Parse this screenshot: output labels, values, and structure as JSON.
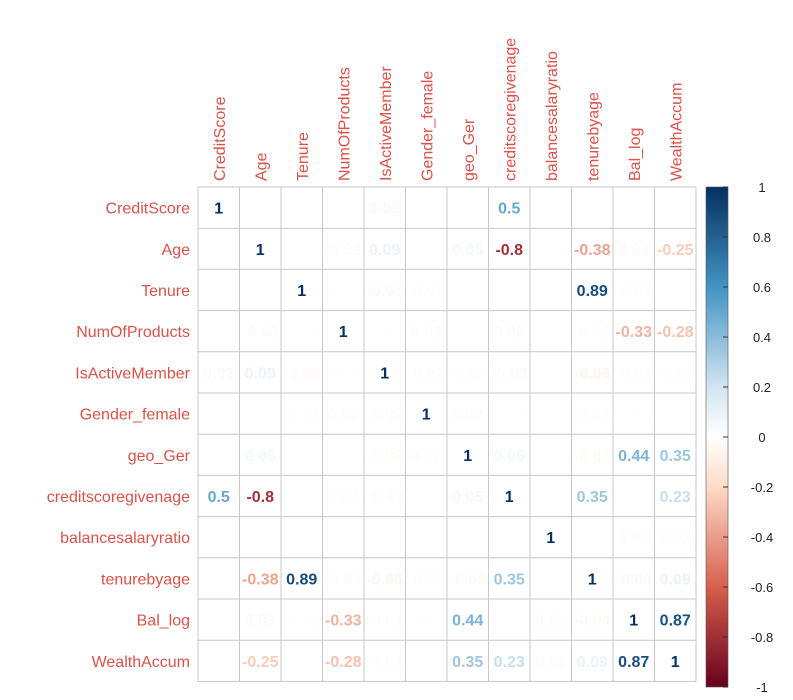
{
  "chart_data": {
    "type": "heatmap",
    "title": "",
    "variables": [
      "CreditScore",
      "Age",
      "Tenure",
      "NumOfProducts",
      "IsActiveMember",
      "Gender_female",
      "geo_Ger",
      "creditscoregivenage",
      "balancesalaryratio",
      "tenurebyage",
      "Bal_log",
      "WealthAccum"
    ],
    "matrix": [
      [
        1,
        0,
        0,
        0,
        0.03,
        0,
        0,
        0.5,
        0,
        0,
        0,
        0
      ],
      [
        0,
        1,
        0,
        -0.03,
        0.09,
        0,
        0.05,
        -0.8,
        0,
        -0.38,
        0.03,
        -0.25
      ],
      [
        0,
        0,
        1,
        0.01,
        -0.03,
        -0.01,
        0,
        0,
        0,
        0.89,
        -0.01,
        0
      ],
      [
        0,
        -0.03,
        0.01,
        1,
        0.01,
        0.02,
        0,
        0.02,
        0,
        -0.02,
        -0.33,
        -0.28
      ],
      [
        0.03,
        0.09,
        -0.03,
        0.01,
        1,
        -0.02,
        -0.02,
        -0.03,
        0,
        -0.06,
        -0.01,
        -0.01
      ],
      [
        0,
        0,
        -0.01,
        0.02,
        -0.02,
        1,
        0.02,
        0.01,
        0,
        -0.02,
        0.01,
        0
      ],
      [
        0,
        0.05,
        0,
        0,
        -0.02,
        0.02,
        1,
        0.05,
        0.01,
        -0.03,
        0.44,
        0.35
      ],
      [
        0.5,
        -0.8,
        0,
        0.02,
        -0.03,
        0.01,
        0.05,
        1,
        0,
        0.35,
        0,
        0.23
      ],
      [
        0,
        0,
        0,
        0,
        0,
        0,
        0.01,
        0,
        1,
        0,
        0.02,
        0.02
      ],
      [
        0,
        -0.38,
        0.89,
        -0.02,
        -0.06,
        -0.02,
        -0.03,
        0.35,
        0,
        1,
        -0.04,
        0.09
      ],
      [
        0,
        0.03,
        -0.01,
        -0.33,
        -0.01,
        0.01,
        0.44,
        0,
        0.02,
        -0.04,
        1,
        0.87
      ],
      [
        0,
        -0.25,
        0,
        -0.28,
        -0.01,
        0,
        0.35,
        0.23,
        0.02,
        0.09,
        0.87,
        1
      ]
    ],
    "colorbar": {
      "range": [
        -1,
        1
      ],
      "ticks": [
        "1",
        "0.8",
        "0.6",
        "0.4",
        "0.2",
        "0",
        "-0.2",
        "-0.4",
        "-0.6",
        "-0.8",
        "-1"
      ],
      "stops": [
        {
          "value": -1,
          "color": "#67001f"
        },
        {
          "value": -0.6,
          "color": "#d6604d"
        },
        {
          "value": -0.2,
          "color": "#fddbc7"
        },
        {
          "value": 0,
          "color": "#ffffff"
        },
        {
          "value": 0.2,
          "color": "#d1e5f0"
        },
        {
          "value": 0.6,
          "color": "#4393c3"
        },
        {
          "value": 1,
          "color": "#053061"
        }
      ]
    },
    "label_color": "#d9534a",
    "grid_color": "#c8c8c8",
    "grid": true,
    "legend": "right"
  }
}
